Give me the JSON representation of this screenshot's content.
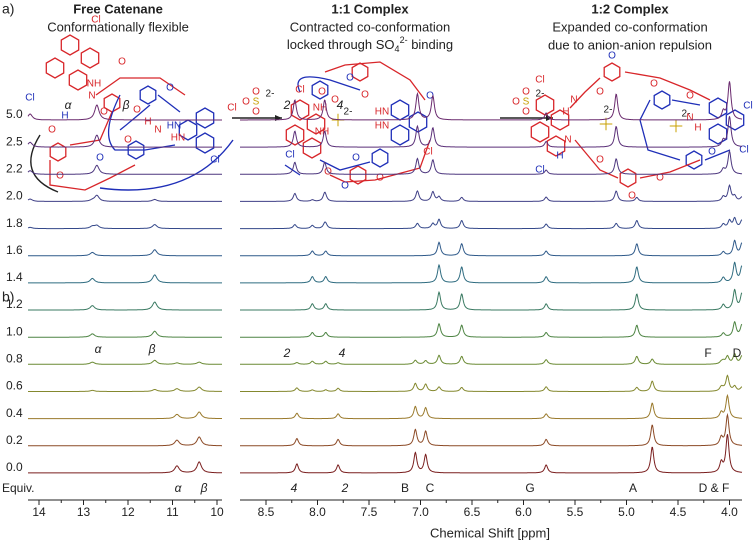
{
  "panel_a": {
    "label": "a)",
    "structures": [
      {
        "title": "Free Catenane",
        "subtitle": [
          "Conformationally flexible"
        ],
        "atoms": [
          "Cl",
          "Cl",
          "NH",
          "N",
          "H",
          "O",
          "O",
          "O",
          "O",
          "O",
          "O",
          "N",
          "H",
          "HN",
          "HN",
          "Cl",
          "Cl",
          "O",
          "O"
        ]
      },
      {
        "title": "1:1 Complex",
        "subtitle": [
          "Contracted co-conformation",
          "locked through SO",
          "4",
          "2-",
          " binding"
        ],
        "atoms": [
          "Cl",
          "Cl",
          "NH",
          "NH",
          "O",
          "O",
          "O",
          "O",
          "O",
          "O",
          "2-",
          "HN",
          "HN",
          "O",
          "Cl",
          "O",
          "O"
        ]
      },
      {
        "title": "1:2 Complex",
        "subtitle": [
          "Expanded co-conformation",
          "due to anion-anion repulsion"
        ],
        "atoms": [
          "Cl",
          "Cl",
          "H",
          "N",
          "H",
          "N",
          "O",
          "O",
          "O",
          "O",
          "2-",
          "2-",
          "O",
          "O",
          "N",
          "H",
          "Cl",
          "O",
          "O",
          "Cl"
        ]
      }
    ],
    "reagents": [
      {
        "atoms": [
          "O",
          "S",
          "O",
          "O"
        ],
        "charge": "2-"
      },
      {
        "atoms": [
          "O",
          "S",
          "O",
          "O"
        ],
        "charge": "2-"
      }
    ]
  },
  "panel_b": {
    "label": "b)",
    "equiv_header": "Equiv.",
    "equivalents": [
      "5.0",
      "2.5",
      "2.2",
      "2.0",
      "1.8",
      "1.6",
      "1.4",
      "1.2",
      "1.0",
      "0.8",
      "0.6",
      "0.4",
      "0.2",
      "0.0"
    ],
    "left_ticks": [
      "14",
      "13",
      "12",
      "11",
      "10"
    ],
    "right_ticks": [
      "8.5",
      "8.0",
      "7.5",
      "7.0",
      "6.5",
      "6.0",
      "5.5",
      "5.0",
      "4.5",
      "4.0"
    ],
    "x_label": "Chemical Shift [ppm]",
    "peak_labels": {
      "top": [
        "α",
        "β",
        "2",
        "4"
      ],
      "middle": [
        "α",
        "β",
        "2",
        "4",
        "F",
        "D"
      ],
      "bottom": [
        "α",
        "β",
        "4",
        "2",
        "B",
        "C",
        "G",
        "A",
        "D & F"
      ]
    }
  }
}
